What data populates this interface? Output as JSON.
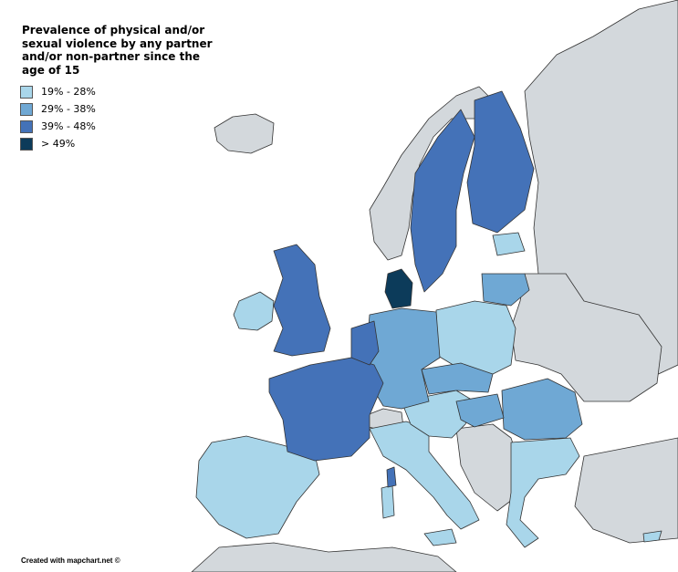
{
  "title": "Prevalence of physical and/or sexual violence by any partner and/or non-partner since the age of 15",
  "legend": [
    {
      "label": "19% - 28%",
      "color": "#a9d6ea"
    },
    {
      "label": "29% - 38%",
      "color": "#6fa8d4"
    },
    {
      "label": "39% - 48%",
      "color": "#4472b8"
    },
    {
      "label": "> 49%",
      "color": "#0c3b5a"
    }
  ],
  "credit": "Created with mapchart.net ©",
  "colors": {
    "non_eu": "#d3d8dc",
    "sea": "#ffffff",
    "border": "#333333"
  }
}
